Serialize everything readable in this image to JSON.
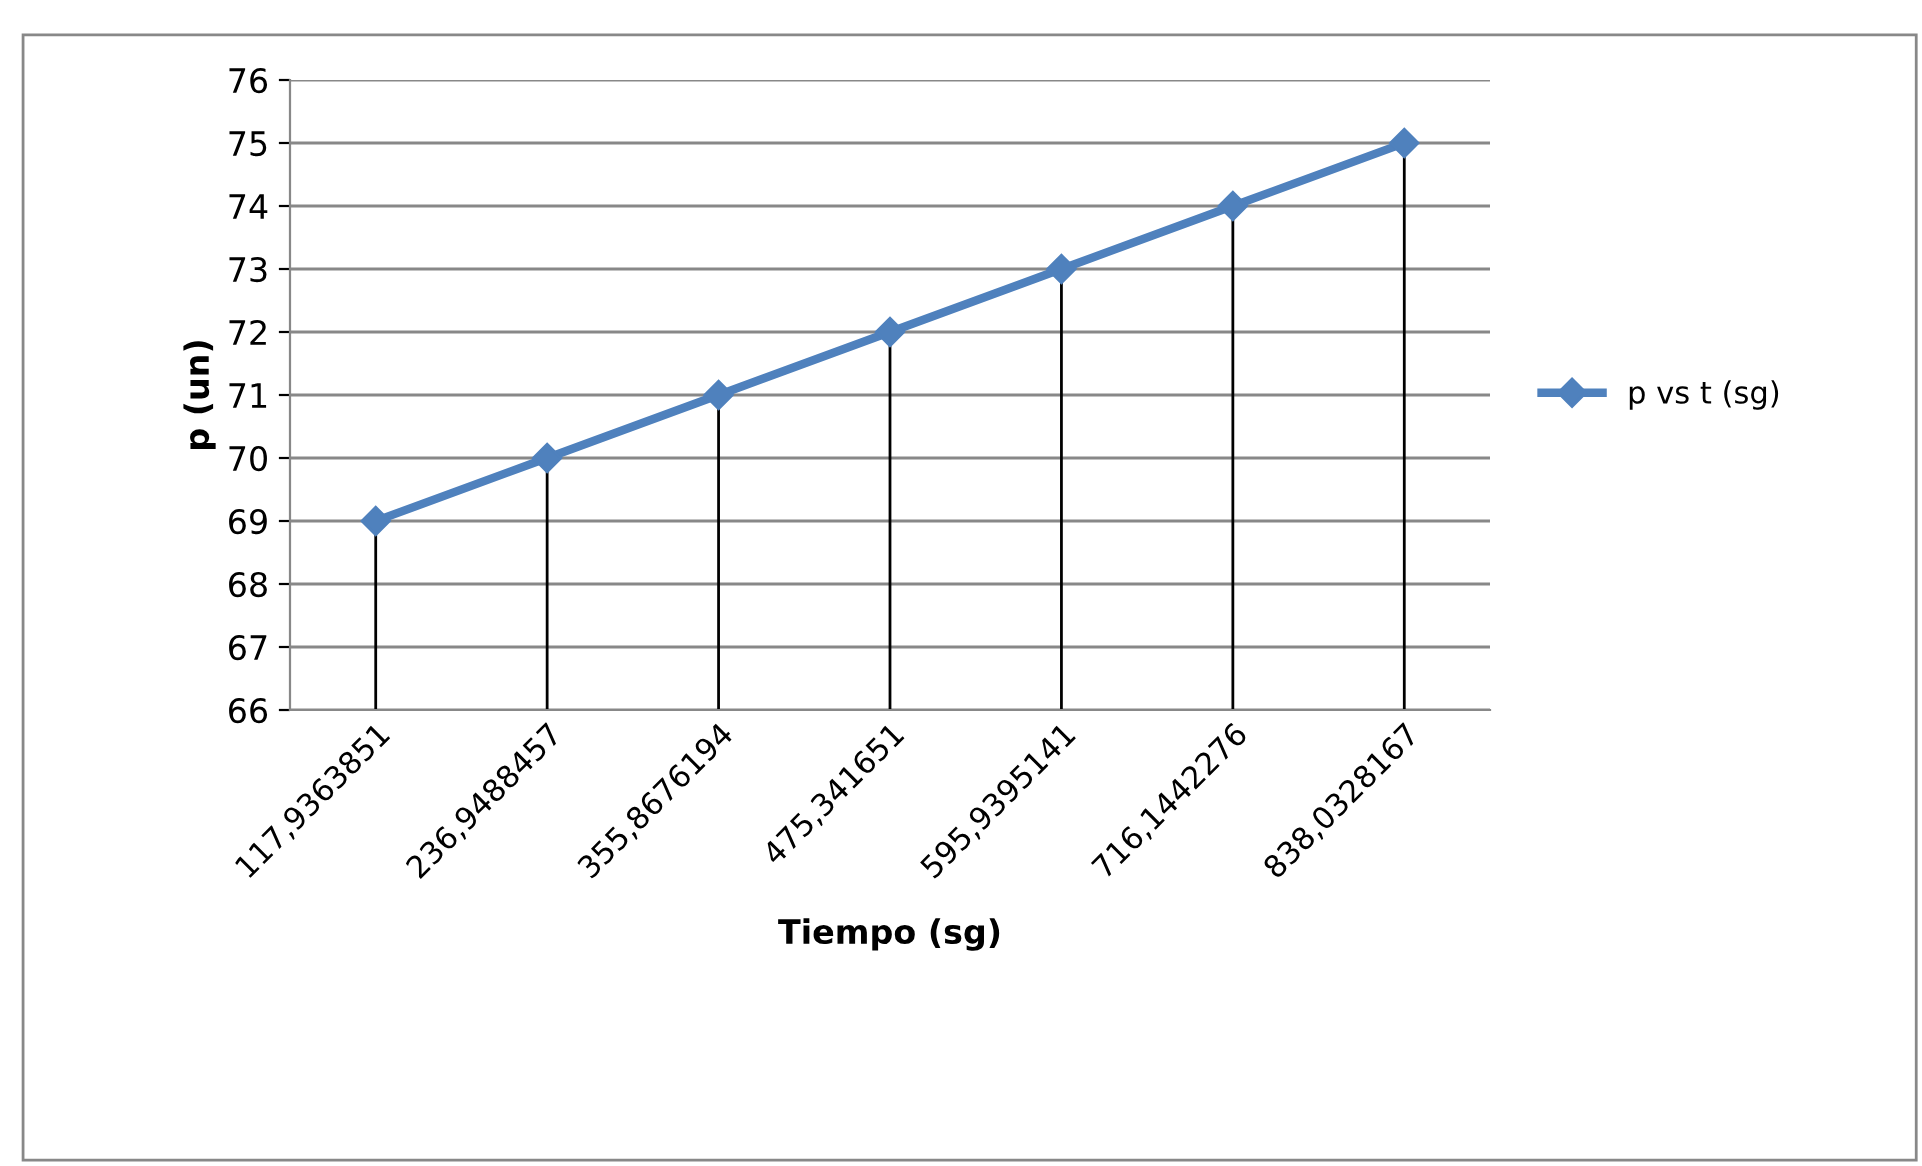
{
  "chart_data": {
    "type": "line",
    "xlabel": "Tiempo (sg)",
    "ylabel": "p (un)",
    "categories": [
      "117,9363851",
      "236,9488457",
      "355,8676194",
      "475,341651",
      "595,9395141",
      "716,1442276",
      "838,0328167"
    ],
    "series": [
      {
        "name": "p vs t (sg)",
        "color": "#4f81bd",
        "values": [
          69,
          70,
          71,
          72,
          73,
          74,
          75
        ],
        "errors": [
          [
            66,
            69
          ],
          [
            66,
            70
          ],
          [
            66,
            71
          ],
          [
            66,
            72
          ],
          [
            66,
            73
          ],
          [
            66,
            74
          ],
          [
            66,
            75
          ]
        ]
      }
    ],
    "ylim": [
      66,
      76
    ],
    "yticks": [
      66,
      67,
      68,
      69,
      70,
      71,
      72,
      73,
      74,
      75,
      76
    ],
    "grid": "y",
    "legend": "right",
    "marker": "diamond",
    "line_style": "solid"
  }
}
